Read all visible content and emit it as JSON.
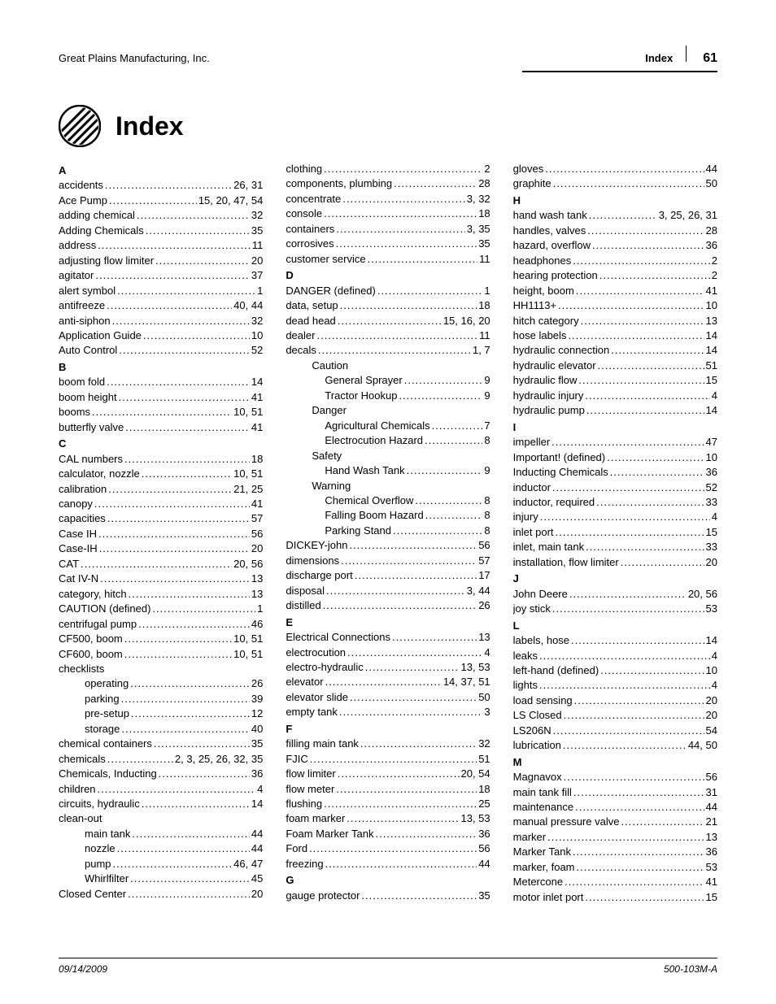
{
  "header": {
    "company": "Great Plains Manufacturing, Inc.",
    "section": "Index",
    "page": "61"
  },
  "title": "Index",
  "footer": {
    "date": "09/14/2009",
    "docnum": "500-103M-A"
  },
  "col1": [
    {
      "type": "letter",
      "text": "A"
    },
    {
      "type": "entry",
      "label": "accidents",
      "pages": "26, 31"
    },
    {
      "type": "entry",
      "label": "Ace Pump",
      "pages": "15, 20, 47, 54"
    },
    {
      "type": "entry",
      "label": "adding chemical",
      "pages": "32"
    },
    {
      "type": "entry",
      "label": "Adding Chemicals",
      "pages": "35"
    },
    {
      "type": "entry",
      "label": "address",
      "pages": "11"
    },
    {
      "type": "entry",
      "label": "adjusting flow limiter",
      "pages": "20"
    },
    {
      "type": "entry",
      "label": "agitator",
      "pages": "37"
    },
    {
      "type": "entry",
      "label": "alert symbol",
      "pages": "1"
    },
    {
      "type": "entry",
      "label": "antifreeze",
      "pages": "40, 44"
    },
    {
      "type": "entry",
      "label": "anti-siphon",
      "pages": "32"
    },
    {
      "type": "entry",
      "label": "Application Guide",
      "pages": "10"
    },
    {
      "type": "entry",
      "label": "Auto Control",
      "pages": "52"
    },
    {
      "type": "letter",
      "text": "B"
    },
    {
      "type": "entry",
      "label": "boom fold",
      "pages": "14"
    },
    {
      "type": "entry",
      "label": "boom height",
      "pages": "41"
    },
    {
      "type": "entry",
      "label": "booms",
      "pages": "10, 51"
    },
    {
      "type": "entry",
      "label": "butterfly valve",
      "pages": "41"
    },
    {
      "type": "letter",
      "text": "C"
    },
    {
      "type": "entry",
      "label": "CAL numbers",
      "pages": "18"
    },
    {
      "type": "entry",
      "label": "calculator, nozzle",
      "pages": "10, 51"
    },
    {
      "type": "entry",
      "label": "calibration",
      "pages": "21, 25"
    },
    {
      "type": "entry",
      "label": "canopy",
      "pages": "41"
    },
    {
      "type": "entry",
      "label": "capacities",
      "pages": "57"
    },
    {
      "type": "entry",
      "label": "Case IH",
      "pages": "56"
    },
    {
      "type": "entry",
      "label": "Case-IH",
      "pages": "20"
    },
    {
      "type": "entry",
      "label": "CAT",
      "pages": "20, 56"
    },
    {
      "type": "entry",
      "label": "Cat IV-N",
      "pages": "13"
    },
    {
      "type": "entry",
      "label": "category, hitch",
      "pages": "13"
    },
    {
      "type": "entry",
      "label": "CAUTION (defined)",
      "pages": "1"
    },
    {
      "type": "entry",
      "label": "centrifugal pump",
      "pages": "46"
    },
    {
      "type": "entry",
      "label": "CF500, boom",
      "pages": "10, 51"
    },
    {
      "type": "entry",
      "label": "CF600, boom",
      "pages": "10, 51"
    },
    {
      "type": "plain",
      "label": "checklists"
    },
    {
      "type": "entry",
      "indent": 1,
      "label": "operating",
      "pages": "26"
    },
    {
      "type": "entry",
      "indent": 1,
      "label": "parking",
      "pages": "39"
    },
    {
      "type": "entry",
      "indent": 1,
      "label": "pre-setup",
      "pages": "12"
    },
    {
      "type": "entry",
      "indent": 1,
      "label": "storage",
      "pages": "40"
    },
    {
      "type": "entry",
      "label": "chemical containers",
      "pages": "35"
    },
    {
      "type": "entry",
      "label": "chemicals",
      "pages": "2, 3, 25, 26, 32, 35"
    },
    {
      "type": "entry",
      "label": "Chemicals, Inducting",
      "pages": "36"
    },
    {
      "type": "entry",
      "label": "children",
      "pages": "4"
    },
    {
      "type": "entry",
      "label": "circuits, hydraulic",
      "pages": "14"
    },
    {
      "type": "plain",
      "label": "clean-out"
    },
    {
      "type": "entry",
      "indent": 1,
      "label": "main tank",
      "pages": "44"
    },
    {
      "type": "entry",
      "indent": 1,
      "label": "nozzle",
      "pages": "44"
    },
    {
      "type": "entry",
      "indent": 1,
      "label": "pump",
      "pages": "46, 47"
    },
    {
      "type": "entry",
      "indent": 1,
      "label": "Whirlfilter",
      "pages": "45"
    },
    {
      "type": "entry",
      "label": "Closed Center",
      "pages": "20"
    }
  ],
  "col2": [
    {
      "type": "entry",
      "label": "clothing",
      "pages": "2"
    },
    {
      "type": "entry",
      "label": "components, plumbing",
      "pages": "28"
    },
    {
      "type": "entry",
      "label": "concentrate",
      "pages": "3, 32"
    },
    {
      "type": "entry",
      "label": "console",
      "pages": "18"
    },
    {
      "type": "entry",
      "label": "containers",
      "pages": "3, 35"
    },
    {
      "type": "entry",
      "label": "corrosives",
      "pages": "35"
    },
    {
      "type": "entry",
      "label": "customer service",
      "pages": "11"
    },
    {
      "type": "letter",
      "text": "D"
    },
    {
      "type": "entry",
      "label": "DANGER (defined)",
      "pages": "1"
    },
    {
      "type": "entry",
      "label": "data, setup",
      "pages": "18"
    },
    {
      "type": "entry",
      "label": "dead head",
      "pages": "15, 16, 20"
    },
    {
      "type": "entry",
      "label": "dealer",
      "pages": "11"
    },
    {
      "type": "entry",
      "label": "decals",
      "pages": "1, 7"
    },
    {
      "type": "plain",
      "indent": 1,
      "label": "Caution"
    },
    {
      "type": "entry",
      "indent": 2,
      "label": "General Sprayer",
      "pages": "9"
    },
    {
      "type": "entry",
      "indent": 2,
      "label": "Tractor Hookup",
      "pages": "9"
    },
    {
      "type": "plain",
      "indent": 1,
      "label": "Danger"
    },
    {
      "type": "entry",
      "indent": 2,
      "label": "Agricultural Chemicals",
      "pages": "7"
    },
    {
      "type": "entry",
      "indent": 2,
      "label": "Electrocution Hazard",
      "pages": "8"
    },
    {
      "type": "plain",
      "indent": 1,
      "label": "Safety"
    },
    {
      "type": "entry",
      "indent": 2,
      "label": "Hand Wash Tank",
      "pages": "9"
    },
    {
      "type": "plain",
      "indent": 1,
      "label": "Warning"
    },
    {
      "type": "entry",
      "indent": 2,
      "label": "Chemical Overflow",
      "pages": "8"
    },
    {
      "type": "entry",
      "indent": 2,
      "label": "Falling Boom Hazard",
      "pages": "8"
    },
    {
      "type": "entry",
      "indent": 2,
      "label": "Parking Stand",
      "pages": "8"
    },
    {
      "type": "entry",
      "label": "DICKEY-john",
      "pages": "56"
    },
    {
      "type": "entry",
      "label": "dimensions",
      "pages": "57"
    },
    {
      "type": "entry",
      "label": "discharge port",
      "pages": "17"
    },
    {
      "type": "entry",
      "label": "disposal",
      "pages": "3, 44"
    },
    {
      "type": "entry",
      "label": "distilled",
      "pages": "26"
    },
    {
      "type": "letter",
      "text": "E"
    },
    {
      "type": "entry",
      "label": "Electrical Connections",
      "pages": "13"
    },
    {
      "type": "entry",
      "label": "electrocution",
      "pages": "4"
    },
    {
      "type": "entry",
      "label": "electro-hydraulic",
      "pages": "13, 53"
    },
    {
      "type": "entry",
      "label": "elevator",
      "pages": "14, 37, 51"
    },
    {
      "type": "entry",
      "label": "elevator slide",
      "pages": "50"
    },
    {
      "type": "entry",
      "label": "empty tank",
      "pages": "3"
    },
    {
      "type": "letter",
      "text": "F"
    },
    {
      "type": "entry",
      "label": "filling main tank",
      "pages": "32"
    },
    {
      "type": "entry",
      "label": "FJIC",
      "pages": "51"
    },
    {
      "type": "entry",
      "label": "flow limiter",
      "pages": "20, 54"
    },
    {
      "type": "entry",
      "label": "flow meter",
      "pages": "18"
    },
    {
      "type": "entry",
      "label": "flushing",
      "pages": "25"
    },
    {
      "type": "entry",
      "label": "foam marker",
      "pages": "13, 53"
    },
    {
      "type": "entry",
      "label": "Foam Marker Tank",
      "pages": "36"
    },
    {
      "type": "entry",
      "label": "Ford",
      "pages": "56"
    },
    {
      "type": "entry",
      "label": "freezing",
      "pages": "44"
    },
    {
      "type": "letter",
      "text": "G"
    },
    {
      "type": "entry",
      "label": "gauge protector",
      "pages": "35"
    }
  ],
  "col3": [
    {
      "type": "entry",
      "label": "gloves",
      "pages": "44"
    },
    {
      "type": "entry",
      "label": "graphite",
      "pages": "50"
    },
    {
      "type": "letter",
      "text": "H"
    },
    {
      "type": "entry",
      "label": "hand wash tank",
      "pages": "3, 25, 26, 31"
    },
    {
      "type": "entry",
      "label": "handles, valves",
      "pages": "28"
    },
    {
      "type": "entry",
      "label": "hazard, overflow",
      "pages": "36"
    },
    {
      "type": "entry",
      "label": "headphones",
      "pages": "2"
    },
    {
      "type": "entry",
      "label": "hearing protection",
      "pages": "2"
    },
    {
      "type": "entry",
      "label": "height, boom",
      "pages": "41"
    },
    {
      "type": "entry",
      "label": "HH1113+",
      "pages": "10"
    },
    {
      "type": "entry",
      "label": "hitch category",
      "pages": "13"
    },
    {
      "type": "entry",
      "label": "hose labels",
      "pages": "14"
    },
    {
      "type": "entry",
      "label": "hydraulic connection",
      "pages": "14"
    },
    {
      "type": "entry",
      "label": "hydraulic elevator",
      "pages": "51"
    },
    {
      "type": "entry",
      "label": "hydraulic flow",
      "pages": "15"
    },
    {
      "type": "entry",
      "label": "hydraulic injury",
      "pages": "4"
    },
    {
      "type": "entry",
      "label": "hydraulic pump",
      "pages": "14"
    },
    {
      "type": "letter",
      "text": "I"
    },
    {
      "type": "entry",
      "label": "impeller",
      "pages": "47"
    },
    {
      "type": "entry",
      "label": "Important! (defined)",
      "pages": "10"
    },
    {
      "type": "entry",
      "label": "Inducting Chemicals",
      "pages": "36"
    },
    {
      "type": "entry",
      "label": "inductor",
      "pages": "52"
    },
    {
      "type": "entry",
      "label": "inductor, required",
      "pages": "33"
    },
    {
      "type": "entry",
      "label": "injury",
      "pages": "4"
    },
    {
      "type": "entry",
      "label": "inlet port",
      "pages": "15"
    },
    {
      "type": "entry",
      "label": "inlet, main tank",
      "pages": "33"
    },
    {
      "type": "entry",
      "label": "installation, flow limiter",
      "pages": "20"
    },
    {
      "type": "letter",
      "text": "J"
    },
    {
      "type": "entry",
      "label": "John Deere",
      "pages": "20, 56"
    },
    {
      "type": "entry",
      "label": "joy stick",
      "pages": "53"
    },
    {
      "type": "letter",
      "text": "L"
    },
    {
      "type": "entry",
      "label": "labels, hose",
      "pages": "14"
    },
    {
      "type": "entry",
      "label": "leaks",
      "pages": "4"
    },
    {
      "type": "entry",
      "label": "left-hand (defined)",
      "pages": "10"
    },
    {
      "type": "entry",
      "label": "lights",
      "pages": "4"
    },
    {
      "type": "entry",
      "label": "load sensing",
      "pages": "20"
    },
    {
      "type": "entry",
      "label": "LS Closed",
      "pages": "20"
    },
    {
      "type": "entry",
      "label": "LS206N",
      "pages": "54"
    },
    {
      "type": "entry",
      "label": "lubrication",
      "pages": "44, 50"
    },
    {
      "type": "letter",
      "text": "M"
    },
    {
      "type": "entry",
      "label": "Magnavox",
      "pages": "56"
    },
    {
      "type": "entry",
      "label": "main tank fill",
      "pages": "31"
    },
    {
      "type": "entry",
      "label": "maintenance",
      "pages": "44"
    },
    {
      "type": "entry",
      "label": "manual pressure valve",
      "pages": "21"
    },
    {
      "type": "entry",
      "label": "marker",
      "pages": "13"
    },
    {
      "type": "entry",
      "label": "Marker Tank",
      "pages": "36"
    },
    {
      "type": "entry",
      "label": "marker, foam",
      "pages": "53"
    },
    {
      "type": "entry",
      "label": "Metercone",
      "pages": "41"
    },
    {
      "type": "entry",
      "label": "motor inlet port",
      "pages": "15"
    }
  ]
}
